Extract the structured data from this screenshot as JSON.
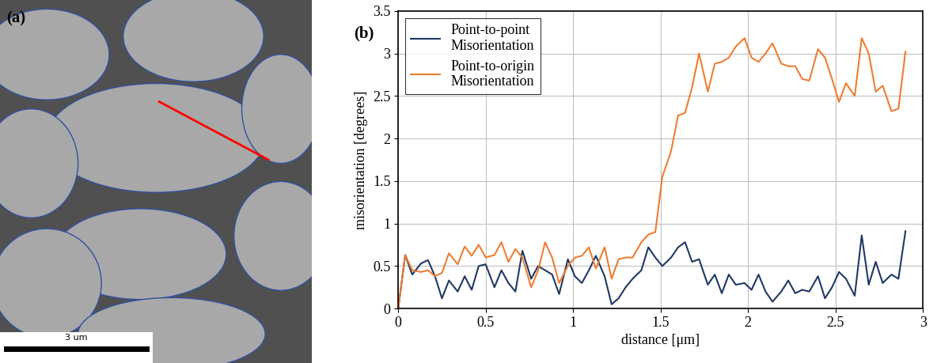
{
  "panel_a": {
    "label": "(a)",
    "scale_bar": "3 um"
  },
  "chart_data": {
    "type": "line",
    "annotation": "(b)",
    "x_label": "distance [μm]",
    "y_label": "misorientation [degrees]",
    "x": [
      0,
      0.04,
      0.08,
      0.13,
      0.17,
      0.21,
      0.25,
      0.29,
      0.34,
      0.38,
      0.42,
      0.46,
      0.5,
      0.55,
      0.59,
      0.63,
      0.67,
      0.71,
      0.76,
      0.8,
      0.84,
      0.88,
      0.92,
      0.97,
      1.01,
      1.05,
      1.09,
      1.13,
      1.18,
      1.22,
      1.26,
      1.3,
      1.34,
      1.39,
      1.43,
      1.47,
      1.51,
      1.56,
      1.6,
      1.64,
      1.68,
      1.72,
      1.77,
      1.81,
      1.85,
      1.89,
      1.93,
      1.98,
      2.02,
      2.06,
      2.1,
      2.14,
      2.19,
      2.23,
      2.27,
      2.31,
      2.35,
      2.4,
      2.44,
      2.48,
      2.52,
      2.56,
      2.61,
      2.65,
      2.69,
      2.73,
      2.77,
      2.82,
      2.86,
      2.9
    ],
    "series": [
      {
        "name": "Point-to-point\nMisorientation",
        "color": "#203864",
        "values": [
          0,
          0.63,
          0.4,
          0.53,
          0.57,
          0.38,
          0.12,
          0.33,
          0.2,
          0.38,
          0.22,
          0.5,
          0.52,
          0.25,
          0.45,
          0.3,
          0.2,
          0.68,
          0.35,
          0.5,
          0.45,
          0.4,
          0.17,
          0.58,
          0.38,
          0.3,
          0.45,
          0.62,
          0.38,
          0.05,
          0.12,
          0.25,
          0.35,
          0.45,
          0.72,
          0.6,
          0.5,
          0.6,
          0.72,
          0.78,
          0.55,
          0.58,
          0.28,
          0.4,
          0.18,
          0.4,
          0.28,
          0.3,
          0.22,
          0.4,
          0.2,
          0.08,
          0.2,
          0.33,
          0.18,
          0.22,
          0.2,
          0.38,
          0.12,
          0.25,
          0.43,
          0.35,
          0.15,
          0.86,
          0.28,
          0.55,
          0.3,
          0.4,
          0.35,
          0.91
        ]
      },
      {
        "name": "Point-to-origin\nMisorientation",
        "color": "#ed7d31",
        "values": [
          0,
          0.63,
          0.45,
          0.43,
          0.45,
          0.38,
          0.42,
          0.65,
          0.52,
          0.73,
          0.62,
          0.75,
          0.6,
          0.63,
          0.78,
          0.55,
          0.7,
          0.6,
          0.25,
          0.45,
          0.78,
          0.6,
          0.3,
          0.5,
          0.6,
          0.62,
          0.72,
          0.47,
          0.72,
          0.35,
          0.58,
          0.6,
          0.6,
          0.78,
          0.87,
          0.9,
          1.55,
          1.85,
          2.27,
          2.3,
          2.6,
          3.0,
          2.55,
          2.88,
          2.9,
          2.95,
          3.08,
          3.18,
          2.95,
          2.9,
          3.0,
          3.12,
          2.88,
          2.85,
          2.85,
          2.7,
          2.68,
          3.05,
          2.95,
          2.7,
          2.43,
          2.65,
          2.5,
          3.18,
          3.0,
          2.55,
          2.62,
          2.32,
          2.35,
          3.02
        ]
      }
    ],
    "xlim": [
      0,
      3
    ],
    "xticks": [
      0,
      0.5,
      1,
      1.5,
      2,
      2.5,
      3
    ],
    "ylim": [
      0,
      3.5
    ],
    "yticks": [
      0,
      0.5,
      1,
      1.5,
      2,
      2.5,
      3,
      3.5
    ],
    "grid": true,
    "legend": "upper left"
  }
}
